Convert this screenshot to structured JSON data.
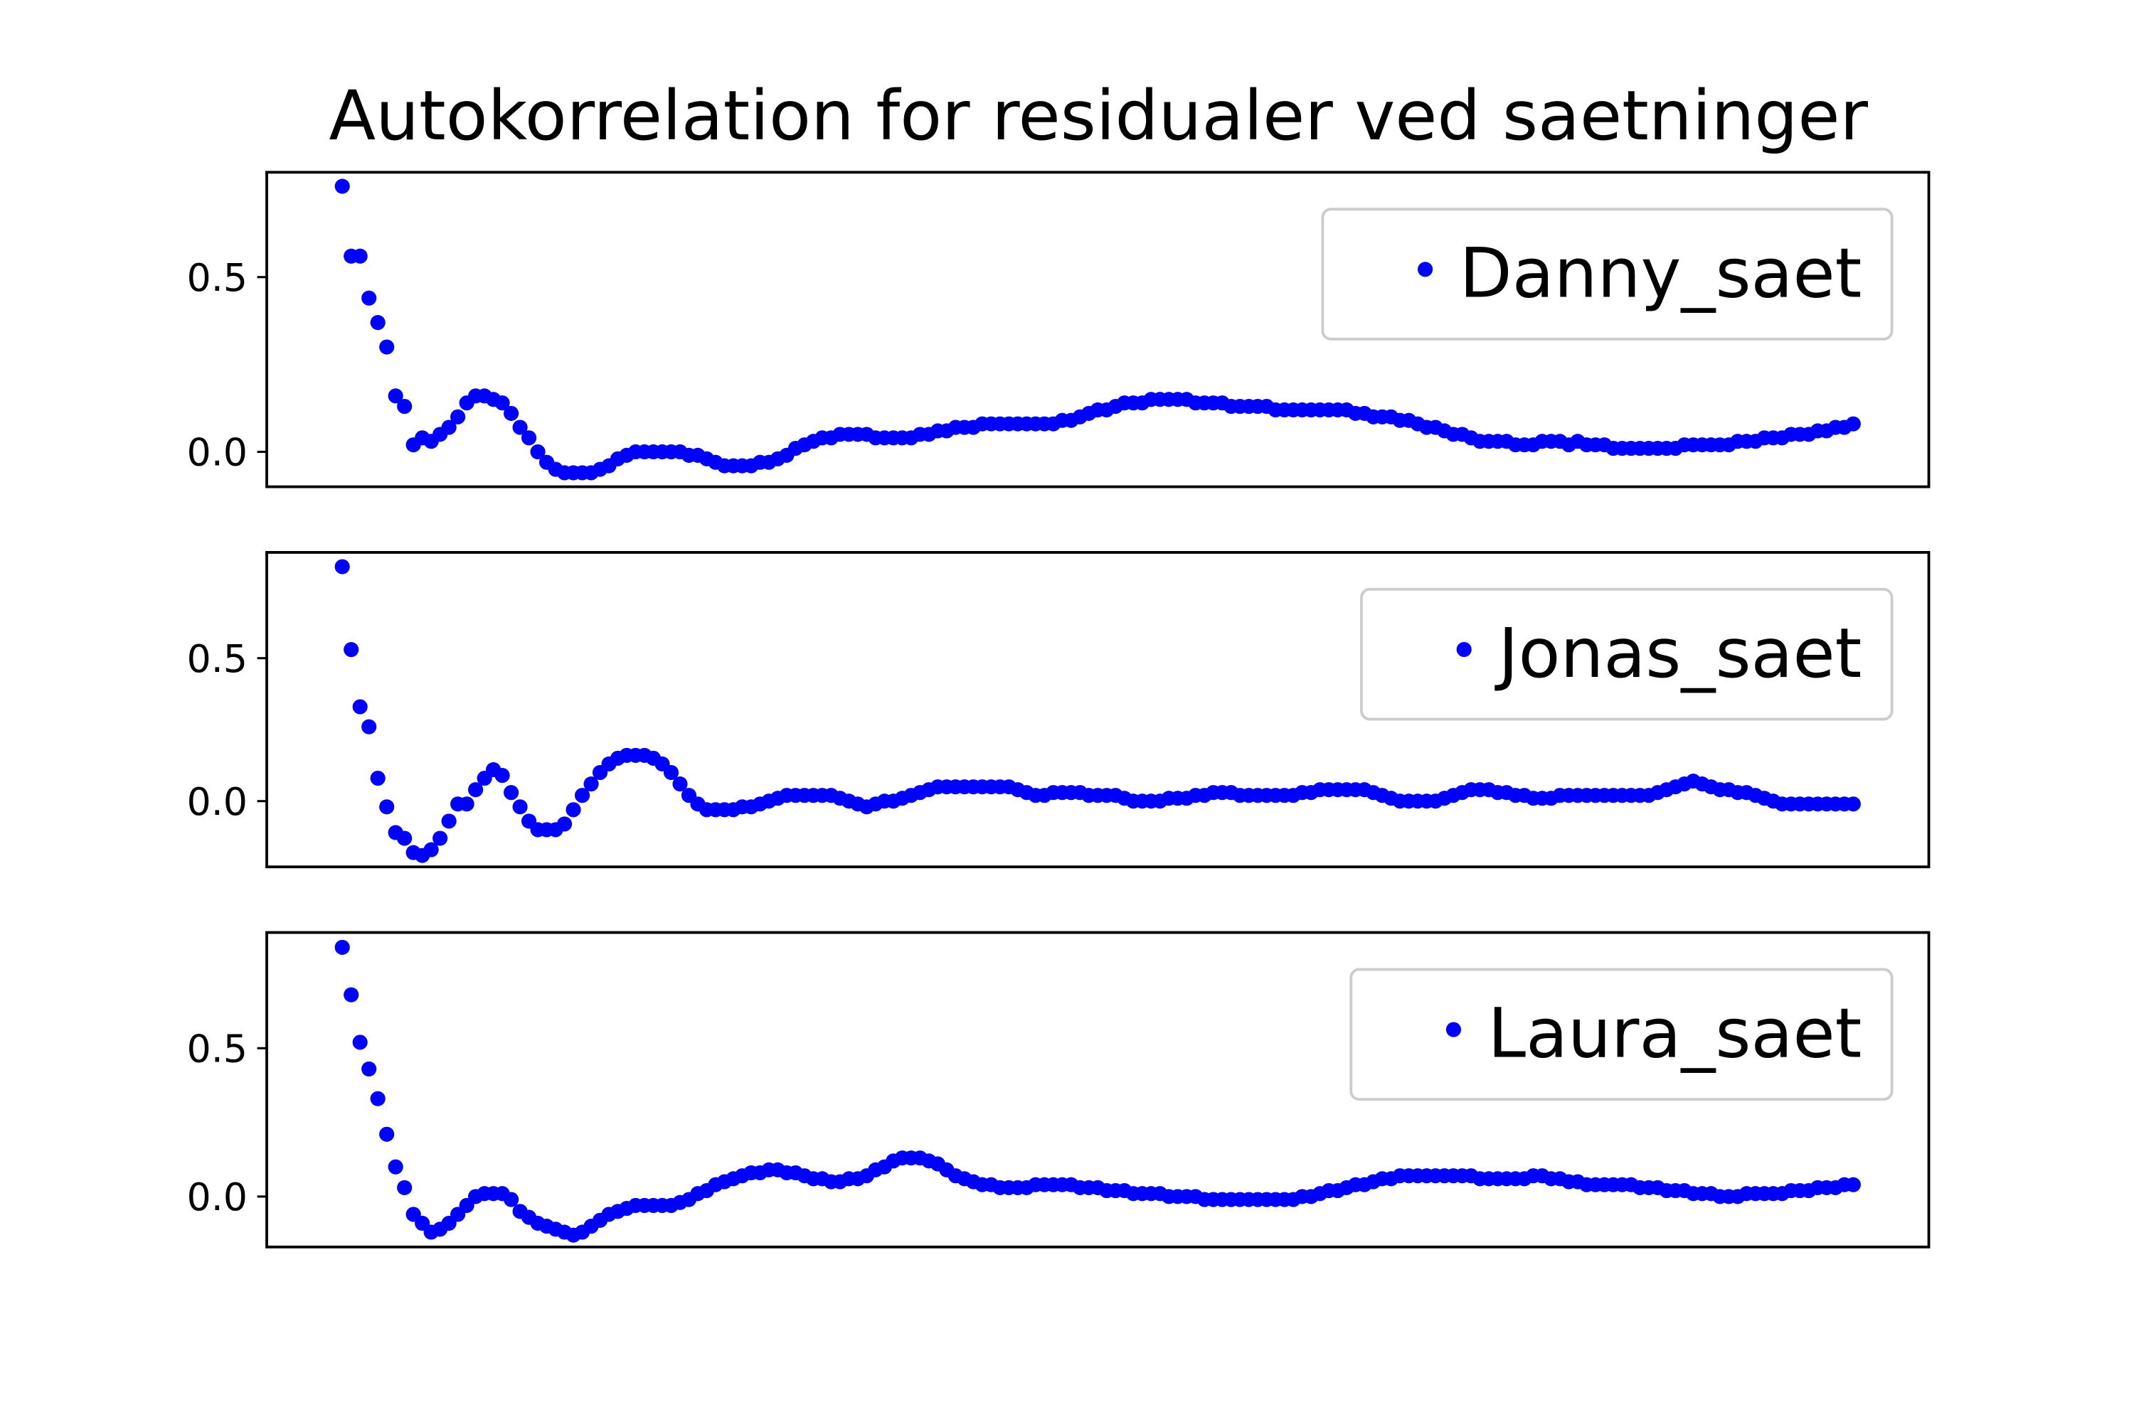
{
  "chart_data": [
    {
      "type": "scatter",
      "title": "Autokorrelation for residualer ved saetninger",
      "ylim": [
        -0.1,
        0.8
      ],
      "yticks": [
        {
          "value": 0,
          "label": "0.0"
        },
        {
          "value": 0.5,
          "label": "0.5"
        }
      ],
      "legend": "upper right",
      "series": [
        {
          "name": "Danny_saet",
          "color": "#0000ff",
          "values": [
            0.76,
            0.56,
            0.56,
            0.44,
            0.37,
            0.3,
            0.16,
            0.13,
            0.02,
            0.04,
            0.03,
            0.05,
            0.07,
            0.1,
            0.14,
            0.16,
            0.16,
            0.15,
            0.14,
            0.11,
            0.07,
            0.04,
            0.0,
            -0.03,
            -0.05,
            -0.06,
            -0.06,
            -0.06,
            -0.06,
            -0.05,
            -0.04,
            -0.02,
            -0.01,
            0.0,
            0.0,
            0.0,
            0.0,
            0.0,
            0.0,
            -0.01,
            -0.01,
            -0.02,
            -0.03,
            -0.04,
            -0.04,
            -0.04,
            -0.04,
            -0.03,
            -0.03,
            -0.02,
            -0.01,
            0.01,
            0.02,
            0.03,
            0.04,
            0.04,
            0.05,
            0.05,
            0.05,
            0.05,
            0.04,
            0.04,
            0.04,
            0.04,
            0.04,
            0.05,
            0.05,
            0.06,
            0.06,
            0.07,
            0.07,
            0.07,
            0.08,
            0.08,
            0.08,
            0.08,
            0.08,
            0.08,
            0.08,
            0.08,
            0.08,
            0.09,
            0.09,
            0.1,
            0.11,
            0.12,
            0.12,
            0.13,
            0.14,
            0.14,
            0.14,
            0.15,
            0.15,
            0.15,
            0.15,
            0.15,
            0.14,
            0.14,
            0.14,
            0.14,
            0.13,
            0.13,
            0.13,
            0.13,
            0.13,
            0.12,
            0.12,
            0.12,
            0.12,
            0.12,
            0.12,
            0.12,
            0.12,
            0.12,
            0.11,
            0.11,
            0.1,
            0.1,
            0.1,
            0.09,
            0.09,
            0.08,
            0.07,
            0.07,
            0.06,
            0.05,
            0.05,
            0.04,
            0.03,
            0.03,
            0.03,
            0.03,
            0.02,
            0.02,
            0.02,
            0.03,
            0.03,
            0.03,
            0.02,
            0.03,
            0.02,
            0.02,
            0.02,
            0.01,
            0.01,
            0.01,
            0.01,
            0.01,
            0.01,
            0.01,
            0.01,
            0.02,
            0.02,
            0.02,
            0.02,
            0.02,
            0.02,
            0.03,
            0.03,
            0.03,
            0.04,
            0.04,
            0.04,
            0.05,
            0.05,
            0.05,
            0.06,
            0.06,
            0.07,
            0.07,
            0.08
          ]
        }
      ]
    },
    {
      "type": "scatter",
      "ylim": [
        -0.23,
        0.87
      ],
      "yticks": [
        {
          "value": 0,
          "label": "0.0"
        },
        {
          "value": 0.5,
          "label": "0.5"
        }
      ],
      "legend": "upper right",
      "series": [
        {
          "name": "Jonas_saet",
          "color": "#0000ff",
          "values": [
            0.82,
            0.53,
            0.33,
            0.26,
            0.08,
            -0.02,
            -0.11,
            -0.13,
            -0.18,
            -0.19,
            -0.17,
            -0.13,
            -0.07,
            -0.01,
            -0.01,
            0.04,
            0.08,
            0.11,
            0.09,
            0.03,
            -0.02,
            -0.07,
            -0.1,
            -0.1,
            -0.1,
            -0.08,
            -0.03,
            0.02,
            0.06,
            0.1,
            0.13,
            0.15,
            0.16,
            0.16,
            0.16,
            0.15,
            0.13,
            0.1,
            0.06,
            0.02,
            -0.01,
            -0.03,
            -0.03,
            -0.03,
            -0.03,
            -0.02,
            -0.02,
            -0.01,
            0.0,
            0.01,
            0.02,
            0.02,
            0.02,
            0.02,
            0.02,
            0.02,
            0.01,
            0.0,
            -0.01,
            -0.02,
            -0.01,
            0.0,
            0.0,
            0.01,
            0.02,
            0.03,
            0.04,
            0.05,
            0.05,
            0.05,
            0.05,
            0.05,
            0.05,
            0.05,
            0.05,
            0.05,
            0.04,
            0.03,
            0.02,
            0.02,
            0.03,
            0.03,
            0.03,
            0.03,
            0.02,
            0.02,
            0.02,
            0.02,
            0.01,
            0.0,
            0.0,
            0.0,
            0.0,
            0.01,
            0.01,
            0.01,
            0.02,
            0.02,
            0.03,
            0.03,
            0.03,
            0.02,
            0.02,
            0.02,
            0.02,
            0.02,
            0.02,
            0.02,
            0.03,
            0.03,
            0.04,
            0.04,
            0.04,
            0.04,
            0.04,
            0.04,
            0.03,
            0.02,
            0.01,
            0.0,
            0.0,
            0.0,
            0.0,
            0.0,
            0.01,
            0.02,
            0.03,
            0.04,
            0.04,
            0.04,
            0.03,
            0.03,
            0.02,
            0.02,
            0.01,
            0.01,
            0.01,
            0.02,
            0.02,
            0.02,
            0.02,
            0.02,
            0.02,
            0.02,
            0.02,
            0.02,
            0.02,
            0.02,
            0.03,
            0.04,
            0.05,
            0.06,
            0.07,
            0.06,
            0.05,
            0.04,
            0.04,
            0.03,
            0.03,
            0.02,
            0.01,
            0.0,
            -0.01,
            -0.01,
            -0.01,
            -0.01,
            -0.01,
            -0.01,
            -0.01,
            -0.01,
            -0.01
          ]
        }
      ]
    },
    {
      "type": "scatter",
      "ylim": [
        -0.17,
        0.89
      ],
      "yticks": [
        {
          "value": 0,
          "label": "0.0"
        },
        {
          "value": 0.5,
          "label": "0.5"
        }
      ],
      "legend": "upper right",
      "series": [
        {
          "name": "Laura_saet",
          "color": "#0000ff",
          "values": [
            0.84,
            0.68,
            0.52,
            0.43,
            0.33,
            0.21,
            0.1,
            0.03,
            -0.06,
            -0.09,
            -0.12,
            -0.11,
            -0.09,
            -0.06,
            -0.03,
            0.0,
            0.01,
            0.01,
            0.01,
            -0.01,
            -0.05,
            -0.07,
            -0.09,
            -0.1,
            -0.11,
            -0.12,
            -0.13,
            -0.12,
            -0.1,
            -0.08,
            -0.06,
            -0.05,
            -0.04,
            -0.03,
            -0.03,
            -0.03,
            -0.03,
            -0.03,
            -0.02,
            -0.01,
            0.01,
            0.02,
            0.04,
            0.05,
            0.06,
            0.07,
            0.08,
            0.08,
            0.09,
            0.09,
            0.08,
            0.08,
            0.07,
            0.06,
            0.06,
            0.05,
            0.05,
            0.06,
            0.06,
            0.07,
            0.09,
            0.1,
            0.12,
            0.13,
            0.13,
            0.13,
            0.12,
            0.11,
            0.09,
            0.07,
            0.06,
            0.05,
            0.04,
            0.04,
            0.03,
            0.03,
            0.03,
            0.03,
            0.04,
            0.04,
            0.04,
            0.04,
            0.04,
            0.03,
            0.03,
            0.03,
            0.02,
            0.02,
            0.02,
            0.01,
            0.01,
            0.01,
            0.01,
            0.0,
            0.0,
            0.0,
            0.0,
            -0.01,
            -0.01,
            -0.01,
            -0.01,
            -0.01,
            -0.01,
            -0.01,
            -0.01,
            -0.01,
            -0.01,
            -0.01,
            0.0,
            0.0,
            0.01,
            0.02,
            0.02,
            0.03,
            0.04,
            0.04,
            0.05,
            0.06,
            0.06,
            0.07,
            0.07,
            0.07,
            0.07,
            0.07,
            0.07,
            0.07,
            0.07,
            0.07,
            0.06,
            0.06,
            0.06,
            0.06,
            0.06,
            0.06,
            0.07,
            0.07,
            0.06,
            0.06,
            0.05,
            0.05,
            0.04,
            0.04,
            0.04,
            0.04,
            0.04,
            0.04,
            0.03,
            0.03,
            0.03,
            0.02,
            0.02,
            0.02,
            0.01,
            0.01,
            0.01,
            0.0,
            0.0,
            0.0,
            0.01,
            0.01,
            0.01,
            0.01,
            0.01,
            0.02,
            0.02,
            0.02,
            0.03,
            0.03,
            0.03,
            0.04,
            0.04
          ]
        }
      ]
    }
  ]
}
